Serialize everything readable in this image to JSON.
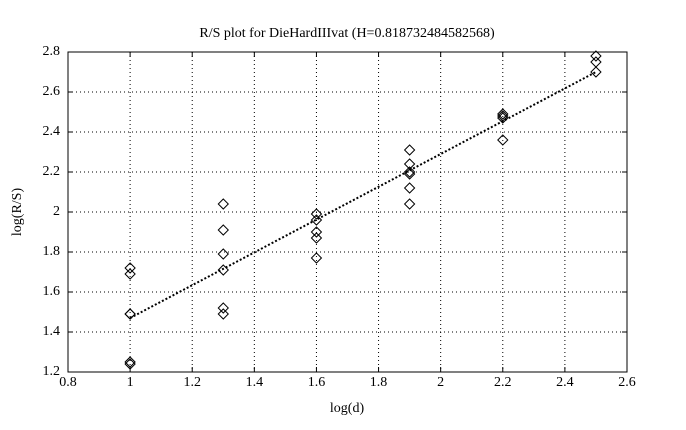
{
  "chart_data": {
    "type": "scatter",
    "title": "R/S plot for DieHardIIIvat (H=0.818732484582568)",
    "x_label": "log(d)",
    "y_label": "log(R/S)",
    "xlim": [
      0.8,
      2.6
    ],
    "xticks": [
      0.8,
      1,
      1.2,
      1.4,
      1.6,
      1.8,
      2,
      2.2,
      2.4,
      2.6
    ],
    "ylim": [
      1.2,
      2.8
    ],
    "yticks": [
      1.2,
      1.4,
      1.6,
      1.8,
      2,
      2.2,
      2.4,
      2.6,
      2.8
    ],
    "grid": true,
    "series": [
      {
        "marker": "diamond",
        "color": "#000000",
        "x": [
          1,
          1,
          1,
          1,
          1,
          1,
          1.3,
          1.3,
          1.3,
          1.3,
          1.3,
          1.3,
          1.6,
          1.6,
          1.6,
          1.6,
          1.6,
          1.9,
          1.9,
          1.9,
          1.9,
          1.9,
          1.9,
          2.2,
          2.2,
          2.2,
          2.2,
          2.5,
          2.5,
          2.5
        ],
        "values": [
          1.72,
          1.69,
          1.49,
          1.49,
          1.25,
          1.24,
          2.04,
          1.91,
          1.79,
          1.71,
          1.52,
          1.49,
          1.99,
          1.96,
          1.9,
          1.87,
          1.77,
          2.31,
          2.24,
          2.2,
          2.19,
          2.12,
          2.04,
          2.49,
          2.48,
          2.47,
          2.36,
          2.78,
          2.75,
          2.7
        ]
      },
      {
        "line": "dotted",
        "color": "#000000",
        "x": [
          1,
          2.5
        ],
        "values": [
          1.47,
          2.7
        ]
      }
    ]
  }
}
